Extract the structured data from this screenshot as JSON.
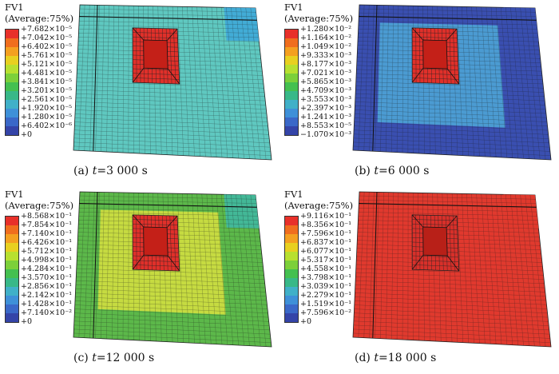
{
  "panels": [
    {
      "title": "FV1",
      "subtitle": "(Average:75%)",
      "legend": [
        "+7.682×10⁻⁵",
        "+7.042×10⁻⁵",
        "+6.402×10⁻⁵",
        "+5.761×10⁻⁵",
        "+5.121×10⁻⁵",
        "+4.481×10⁻⁵",
        "+3.841×10⁻⁵",
        "+3.201×10⁻⁵",
        "+2.561×10⁻⁵",
        "+1.920×10⁻⁵",
        "+1.280×10⁻⁵",
        "+6.402×10⁻⁶",
        "+0"
      ],
      "caption_prefix": "(a) ",
      "caption_var": "t",
      "caption_value": "=3 000 s",
      "plate_color": "#5fc8c0",
      "ring_color": "#5fc8c0",
      "corner_color": "#3fa8d8",
      "pit_color": "#e0302a",
      "pit_inner": "#c42018"
    },
    {
      "title": "FV1",
      "subtitle": "(Average:75%)",
      "legend": [
        "+1.280×10⁻²",
        "+1.164×10⁻²",
        "+1.049×10⁻²",
        "+9.333×10⁻³",
        "+8.177×10⁻³",
        "+7.021×10⁻³",
        "+5.865×10⁻³",
        "+4.709×10⁻³",
        "+3.553×10⁻³",
        "+2.397×10⁻³",
        "+1.241×10⁻³",
        "+8.553×10⁻⁵",
        "−1.070×10⁻³"
      ],
      "caption_prefix": "(b) ",
      "caption_var": "t",
      "caption_value": "=6 000 s",
      "plate_color": "#3a4fb0",
      "ring_color": "#4fa8d8",
      "corner_color": "#3a4fb0",
      "pit_color": "#e0302a",
      "pit_inner": "#c42018"
    },
    {
      "title": "FV1",
      "subtitle": "(Average:75%)",
      "legend": [
        "+8.568×10⁻¹",
        "+7.854×10⁻¹",
        "+7.140×10⁻¹",
        "+6.426×10⁻¹",
        "+5.712×10⁻¹",
        "+4.998×10⁻¹",
        "+4.284×10⁻¹",
        "+3.570×10⁻¹",
        "+2.856×10⁻¹",
        "+2.142×10⁻¹",
        "+1.428×10⁻¹",
        "+7.140×10⁻²",
        "+0"
      ],
      "caption_prefix": "(c) ",
      "caption_var": "t",
      "caption_value": "=12 000 s",
      "plate_color": "#5cb84a",
      "ring_color": "#d8e040",
      "corner_color": "#40b8a0",
      "pit_color": "#e0302a",
      "pit_inner": "#c42018"
    },
    {
      "title": "FV1",
      "subtitle": "(Average:75%)",
      "legend": [
        "+9.116×10⁻¹",
        "+8.356×10⁻¹",
        "+7.596×10⁻¹",
        "+6.837×10⁻¹",
        "+6.077×10⁻¹",
        "+5.317×10⁻¹",
        "+4.558×10⁻¹",
        "+3.798×10⁻¹",
        "+3.039×10⁻¹",
        "+2.279×10⁻¹",
        "+1.519×10⁻¹",
        "+7.596×10⁻²",
        "+0"
      ],
      "caption_prefix": "(d) ",
      "caption_var": "t",
      "caption_value": "=18 000 s",
      "plate_color": "#e03a2e",
      "ring_color": "#e03a2e",
      "corner_color": "#e03a2e",
      "pit_color": "#d8302a",
      "pit_inner": "#b82018"
    }
  ],
  "legend_colors": [
    "#e8302a",
    "#f06e1e",
    "#f4a020",
    "#e8d020",
    "#b8e030",
    "#7cd03a",
    "#44c050",
    "#38b888",
    "#40b0c8",
    "#3e90d8",
    "#3a68c8",
    "#3444a8",
    "#203088"
  ]
}
